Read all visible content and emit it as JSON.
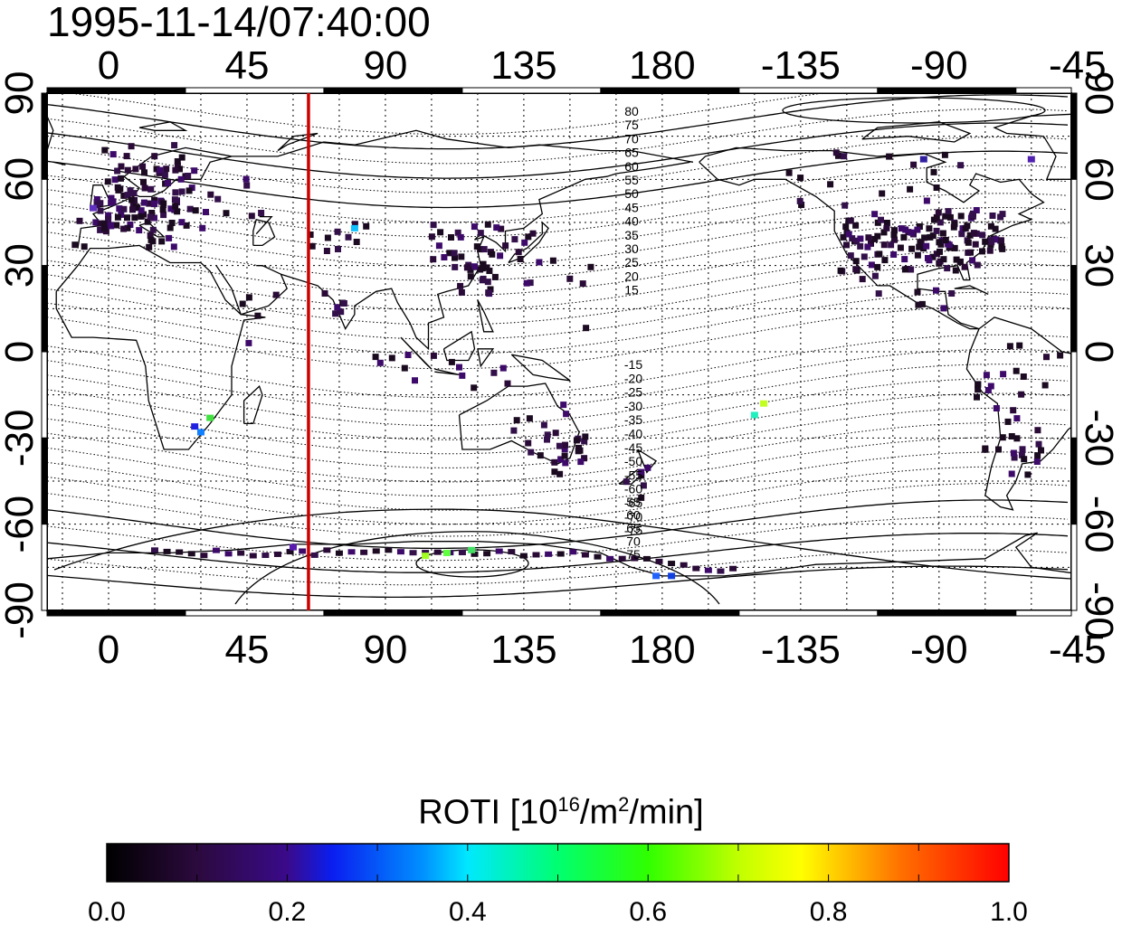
{
  "timestamp": "1995-11-14/07:40:00",
  "map": {
    "lon_ticks_top": [
      "0",
      "45",
      "90",
      "135",
      "180",
      "-135",
      "-90",
      "-45"
    ],
    "lon_ticks_bottom": [
      "0",
      "45",
      "90",
      "135",
      "180",
      "-135",
      "-90",
      "-45"
    ],
    "lat_ticks_left": [
      "90",
      "60",
      "30",
      "0",
      "-30",
      "-60",
      "-90"
    ],
    "lat_ticks_right": [
      "90",
      "60",
      "30",
      "0",
      "-30",
      "-60",
      "-90"
    ],
    "meridian_marker_lon": 65,
    "contour_labels_north": [
      "80",
      "75",
      "70",
      "65",
      "60",
      "55",
      "50",
      "45",
      "40",
      "35",
      "30",
      "25",
      "20",
      "15"
    ],
    "contour_labels_south": [
      "-15",
      "-20",
      "-25",
      "-30",
      "-35",
      "-40",
      "-45",
      "-50",
      "-55",
      "-60",
      "-65",
      "-70",
      "-75"
    ],
    "contour_labels_south_plain": [
      "55",
      "60",
      "65",
      "70",
      "75"
    ]
  },
  "colorbar": {
    "title_main": "ROTI  [10",
    "title_exp1": "16",
    "title_mid": "/m",
    "title_exp2": "2",
    "title_end": "/min]",
    "ticks": [
      "0.0",
      "0.2",
      "0.4",
      "0.6",
      "0.8",
      "1.0"
    ],
    "range": [
      0.0,
      1.0
    ]
  }
}
